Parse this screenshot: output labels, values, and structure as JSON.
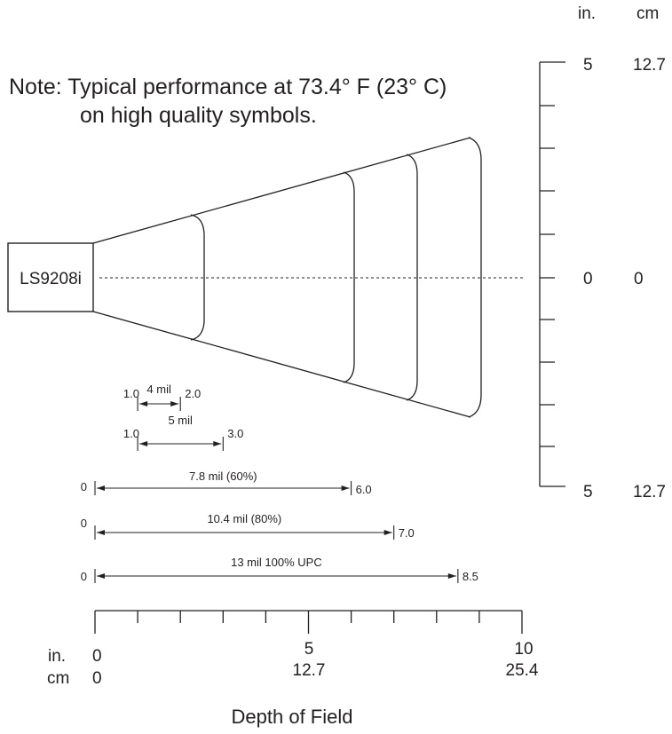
{
  "note": {
    "line1": "Note:  Typical performance at 73.4° F (23° C)",
    "line2": "on high quality symbols."
  },
  "scanner": {
    "label": "LS9208i"
  },
  "vertical_scale": {
    "unit_in": "in.",
    "unit_cm": "cm",
    "top_in": "5",
    "top_cm": "12.7",
    "mid_in": "0",
    "mid_cm": "0",
    "bottom_in": "5",
    "bottom_cm": "12.7"
  },
  "depth_scale": {
    "unit_in": "in.",
    "unit_cm": "cm",
    "in_labels": [
      "0",
      "5",
      "10"
    ],
    "cm_labels": [
      "0",
      "12.7",
      "25.4"
    ],
    "max_in": 10,
    "minor_tick_count": 10
  },
  "ranges": [
    {
      "label": "4 mil",
      "near_label": "1.0",
      "far_label": "2.0",
      "near": 1.0,
      "far": 2.0
    },
    {
      "label": "5 mil",
      "near_label": "1.0",
      "far_label": "3.0",
      "near": 1.0,
      "far": 3.0
    },
    {
      "label": "7.8 mil (60%)",
      "near_label": "0",
      "far_label": "6.0",
      "near": 0,
      "far": 6.0
    },
    {
      "label": "10.4 mil (80%)",
      "near_label": "0",
      "far_label": "7.0",
      "near": 0,
      "far": 7.0
    },
    {
      "label": "13 mil 100% UPC",
      "near_label": "0",
      "far_label": "8.5",
      "near": 0,
      "far": 8.5
    }
  ],
  "title": "Depth of Field"
}
